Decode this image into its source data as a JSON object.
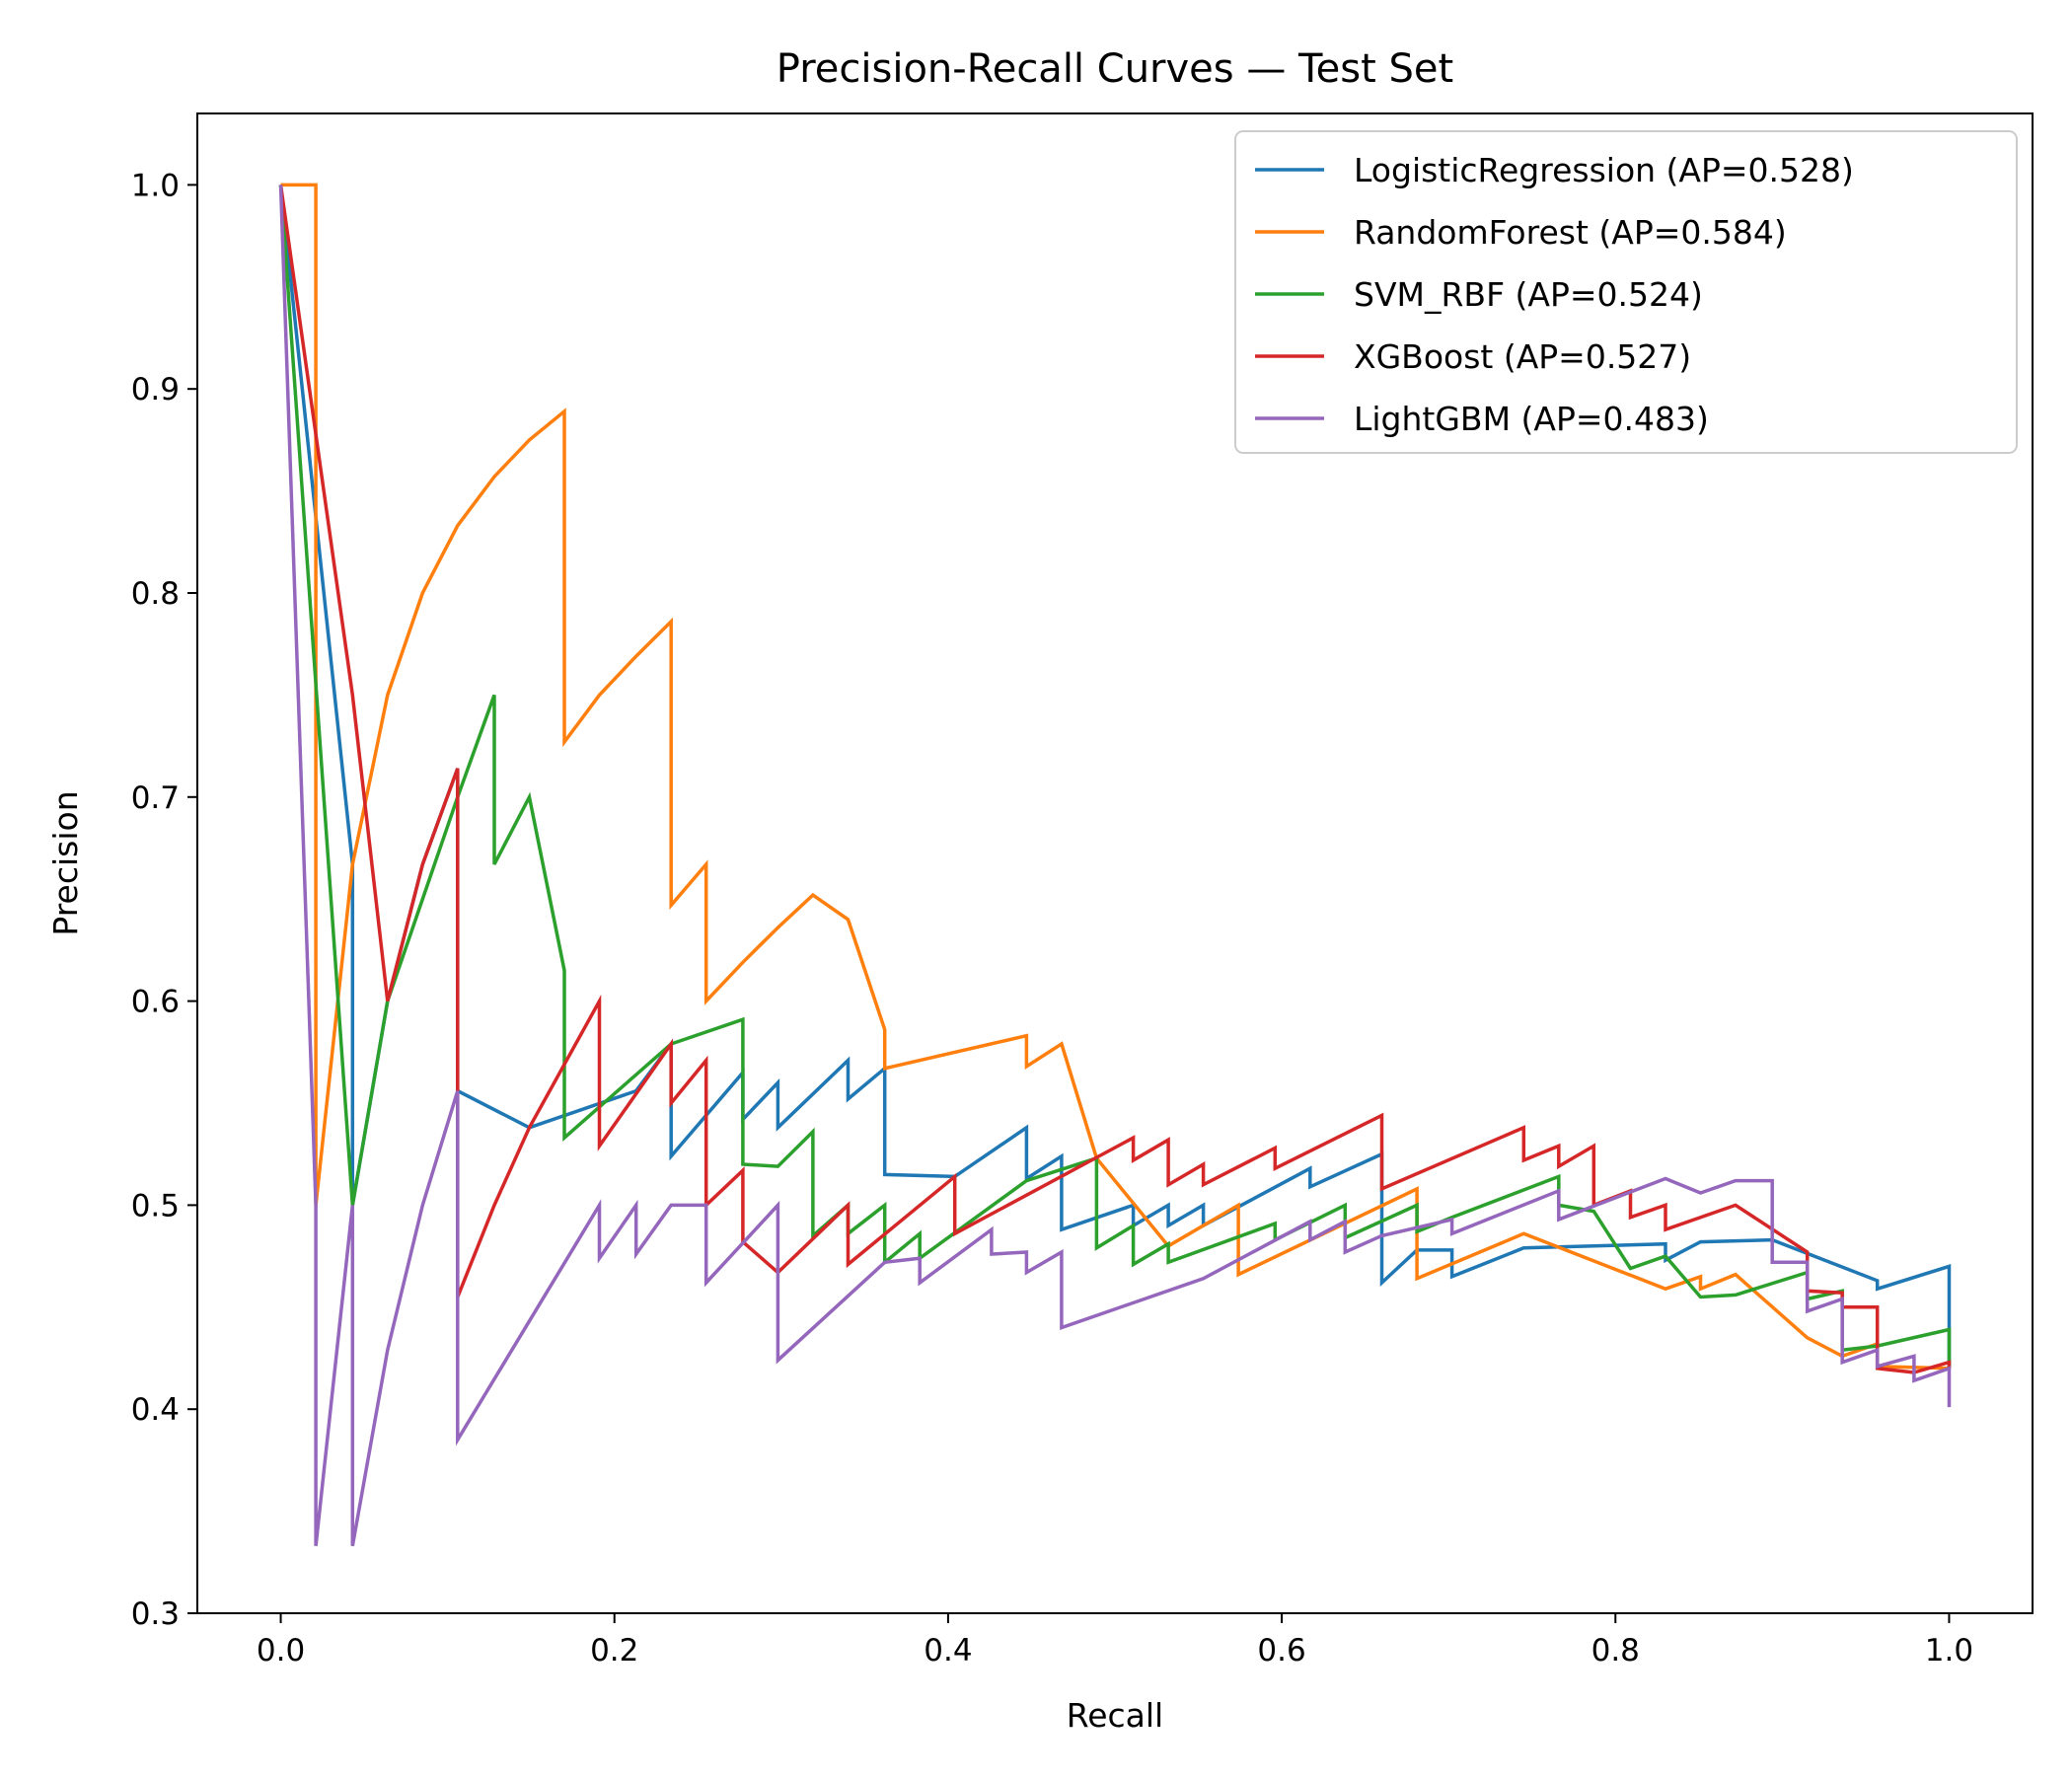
{
  "chart_data": {
    "type": "line",
    "title": "Precision-Recall Curves — Test Set",
    "xlabel": "Recall",
    "ylabel": "Precision",
    "xlim": [
      -0.05,
      1.05
    ],
    "ylim": [
      0.3,
      1.035
    ],
    "xticks": [
      0.0,
      0.2,
      0.4,
      0.6,
      0.8,
      1.0
    ],
    "xtick_labels": [
      "0.0",
      "0.2",
      "0.4",
      "0.6",
      "0.8",
      "1.0"
    ],
    "yticks": [
      0.3,
      0.4,
      0.5,
      0.6,
      0.7,
      0.8,
      0.9,
      1.0
    ],
    "ytick_labels": [
      "0.3",
      "0.4",
      "0.5",
      "0.6",
      "0.7",
      "0.8",
      "0.9",
      "1.0"
    ],
    "grid": false,
    "legend_position": "top-right",
    "series": [
      {
        "name": "LogisticRegression (AP=0.528)",
        "color": "#1f77b4",
        "points": [
          [
            0.0,
            1.0
          ],
          [
            0.043,
            0.667
          ],
          [
            0.043,
            0.5
          ],
          [
            0.064,
            0.6
          ],
          [
            0.085,
            0.667
          ],
          [
            0.106,
            0.714
          ],
          [
            0.106,
            0.556
          ],
          [
            0.149,
            0.538
          ],
          [
            0.213,
            0.556
          ],
          [
            0.234,
            0.579
          ],
          [
            0.234,
            0.524
          ],
          [
            0.277,
            0.565
          ],
          [
            0.277,
            0.542
          ],
          [
            0.298,
            0.56
          ],
          [
            0.298,
            0.538
          ],
          [
            0.34,
            0.571
          ],
          [
            0.34,
            0.552
          ],
          [
            0.362,
            0.567
          ],
          [
            0.362,
            0.515
          ],
          [
            0.404,
            0.514
          ],
          [
            0.447,
            0.538
          ],
          [
            0.447,
            0.513
          ],
          [
            0.468,
            0.524
          ],
          [
            0.468,
            0.488
          ],
          [
            0.511,
            0.5
          ],
          [
            0.511,
            0.49
          ],
          [
            0.532,
            0.5
          ],
          [
            0.532,
            0.49
          ],
          [
            0.553,
            0.5
          ],
          [
            0.553,
            0.49
          ],
          [
            0.617,
            0.518
          ],
          [
            0.617,
            0.509
          ],
          [
            0.66,
            0.525
          ],
          [
            0.66,
            0.462
          ],
          [
            0.681,
            0.478
          ],
          [
            0.702,
            0.478
          ],
          [
            0.702,
            0.465
          ],
          [
            0.745,
            0.479
          ],
          [
            0.83,
            0.481
          ],
          [
            0.83,
            0.473
          ],
          [
            0.851,
            0.482
          ],
          [
            0.894,
            0.483
          ],
          [
            0.957,
            0.463
          ],
          [
            0.957,
            0.459
          ],
          [
            1.0,
            0.47
          ],
          [
            1.0,
            0.42
          ]
        ]
      },
      {
        "name": "RandomForest (AP=0.584)",
        "color": "#ff7f0e",
        "points": [
          [
            0.0,
            1.0
          ],
          [
            0.021,
            1.0
          ],
          [
            0.021,
            0.5
          ],
          [
            0.043,
            0.667
          ],
          [
            0.064,
            0.75
          ],
          [
            0.085,
            0.8
          ],
          [
            0.106,
            0.833
          ],
          [
            0.128,
            0.857
          ],
          [
            0.149,
            0.875
          ],
          [
            0.17,
            0.889
          ],
          [
            0.17,
            0.727
          ],
          [
            0.191,
            0.75
          ],
          [
            0.213,
            0.769
          ],
          [
            0.234,
            0.786
          ],
          [
            0.234,
            0.647
          ],
          [
            0.255,
            0.667
          ],
          [
            0.255,
            0.6
          ],
          [
            0.277,
            0.619
          ],
          [
            0.298,
            0.636
          ],
          [
            0.319,
            0.652
          ],
          [
            0.34,
            0.64
          ],
          [
            0.362,
            0.586
          ],
          [
            0.362,
            0.567
          ],
          [
            0.447,
            0.583
          ],
          [
            0.447,
            0.568
          ],
          [
            0.468,
            0.579
          ],
          [
            0.489,
            0.523
          ],
          [
            0.532,
            0.48
          ],
          [
            0.574,
            0.5
          ],
          [
            0.574,
            0.466
          ],
          [
            0.681,
            0.508
          ],
          [
            0.681,
            0.464
          ],
          [
            0.745,
            0.486
          ],
          [
            0.83,
            0.459
          ],
          [
            0.851,
            0.465
          ],
          [
            0.851,
            0.459
          ],
          [
            0.872,
            0.466
          ],
          [
            0.915,
            0.435
          ],
          [
            0.936,
            0.426
          ],
          [
            0.957,
            0.432
          ],
          [
            0.957,
            0.421
          ],
          [
            1.0,
            0.42
          ]
        ]
      },
      {
        "name": "SVM_RBF (AP=0.524)",
        "color": "#2ca02c",
        "points": [
          [
            0.0,
            1.0
          ],
          [
            0.043,
            0.5
          ],
          [
            0.064,
            0.6
          ],
          [
            0.106,
            0.7
          ],
          [
            0.128,
            0.75
          ],
          [
            0.128,
            0.667
          ],
          [
            0.149,
            0.7
          ],
          [
            0.17,
            0.615
          ],
          [
            0.17,
            0.533
          ],
          [
            0.234,
            0.579
          ],
          [
            0.277,
            0.591
          ],
          [
            0.277,
            0.52
          ],
          [
            0.298,
            0.519
          ],
          [
            0.319,
            0.536
          ],
          [
            0.319,
            0.485
          ],
          [
            0.34,
            0.5
          ],
          [
            0.34,
            0.486
          ],
          [
            0.362,
            0.5
          ],
          [
            0.362,
            0.472
          ],
          [
            0.383,
            0.486
          ],
          [
            0.383,
            0.474
          ],
          [
            0.447,
            0.512
          ],
          [
            0.489,
            0.523
          ],
          [
            0.489,
            0.479
          ],
          [
            0.511,
            0.49
          ],
          [
            0.511,
            0.471
          ],
          [
            0.532,
            0.481
          ],
          [
            0.532,
            0.472
          ],
          [
            0.596,
            0.491
          ],
          [
            0.596,
            0.483
          ],
          [
            0.638,
            0.5
          ],
          [
            0.638,
            0.484
          ],
          [
            0.681,
            0.5
          ],
          [
            0.681,
            0.487
          ],
          [
            0.702,
            0.494
          ],
          [
            0.766,
            0.514
          ],
          [
            0.766,
            0.5
          ],
          [
            0.787,
            0.497
          ],
          [
            0.809,
            0.469
          ],
          [
            0.83,
            0.475
          ],
          [
            0.851,
            0.455
          ],
          [
            0.872,
            0.456
          ],
          [
            0.915,
            0.467
          ],
          [
            0.915,
            0.454
          ],
          [
            0.936,
            0.458
          ],
          [
            0.936,
            0.429
          ],
          [
            0.957,
            0.431
          ],
          [
            1.0,
            0.439
          ],
          [
            1.0,
            0.42
          ]
        ]
      },
      {
        "name": "XGBoost (AP=0.527)",
        "color": "#d62728",
        "points": [
          [
            0.0,
            1.0
          ],
          [
            0.043,
            0.75
          ],
          [
            0.064,
            0.6
          ],
          [
            0.085,
            0.667
          ],
          [
            0.106,
            0.714
          ],
          [
            0.106,
            0.455
          ],
          [
            0.128,
            0.5
          ],
          [
            0.149,
            0.538
          ],
          [
            0.191,
            0.6
          ],
          [
            0.191,
            0.529
          ],
          [
            0.234,
            0.579
          ],
          [
            0.234,
            0.55
          ],
          [
            0.255,
            0.571
          ],
          [
            0.255,
            0.5
          ],
          [
            0.277,
            0.517
          ],
          [
            0.277,
            0.482
          ],
          [
            0.298,
            0.467
          ],
          [
            0.298,
            0.467
          ],
          [
            0.34,
            0.5
          ],
          [
            0.34,
            0.471
          ],
          [
            0.404,
            0.514
          ],
          [
            0.404,
            0.486
          ],
          [
            0.511,
            0.533
          ],
          [
            0.511,
            0.522
          ],
          [
            0.532,
            0.532
          ],
          [
            0.532,
            0.51
          ],
          [
            0.553,
            0.52
          ],
          [
            0.553,
            0.51
          ],
          [
            0.596,
            0.528
          ],
          [
            0.596,
            0.518
          ],
          [
            0.66,
            0.544
          ],
          [
            0.66,
            0.508
          ],
          [
            0.745,
            0.538
          ],
          [
            0.745,
            0.522
          ],
          [
            0.766,
            0.529
          ],
          [
            0.766,
            0.519
          ],
          [
            0.787,
            0.529
          ],
          [
            0.787,
            0.5
          ],
          [
            0.809,
            0.507
          ],
          [
            0.809,
            0.494
          ],
          [
            0.83,
            0.5
          ],
          [
            0.83,
            0.488
          ],
          [
            0.872,
            0.5
          ],
          [
            0.915,
            0.477
          ],
          [
            0.915,
            0.458
          ],
          [
            0.936,
            0.457
          ],
          [
            0.936,
            0.45
          ],
          [
            0.957,
            0.45
          ],
          [
            0.957,
            0.42
          ],
          [
            0.979,
            0.418
          ],
          [
            1.0,
            0.423
          ],
          [
            1.0,
            0.42
          ]
        ]
      },
      {
        "name": "LightGBM (AP=0.483)",
        "color": "#9467bd",
        "points": [
          [
            0.0,
            1.0
          ],
          [
            0.021,
            0.5
          ],
          [
            0.021,
            0.333
          ],
          [
            0.043,
            0.5
          ],
          [
            0.043,
            0.333
          ],
          [
            0.064,
            0.429
          ],
          [
            0.085,
            0.5
          ],
          [
            0.106,
            0.556
          ],
          [
            0.106,
            0.385
          ],
          [
            0.191,
            0.5
          ],
          [
            0.191,
            0.474
          ],
          [
            0.213,
            0.5
          ],
          [
            0.213,
            0.476
          ],
          [
            0.234,
            0.5
          ],
          [
            0.255,
            0.5
          ],
          [
            0.255,
            0.462
          ],
          [
            0.298,
            0.5
          ],
          [
            0.298,
            0.424
          ],
          [
            0.362,
            0.472
          ],
          [
            0.383,
            0.474
          ],
          [
            0.383,
            0.462
          ],
          [
            0.426,
            0.488
          ],
          [
            0.426,
            0.476
          ],
          [
            0.447,
            0.477
          ],
          [
            0.447,
            0.467
          ],
          [
            0.468,
            0.477
          ],
          [
            0.468,
            0.44
          ],
          [
            0.553,
            0.464
          ],
          [
            0.617,
            0.492
          ],
          [
            0.617,
            0.483
          ],
          [
            0.638,
            0.492
          ],
          [
            0.638,
            0.477
          ],
          [
            0.66,
            0.485
          ],
          [
            0.702,
            0.493
          ],
          [
            0.702,
            0.486
          ],
          [
            0.766,
            0.507
          ],
          [
            0.766,
            0.493
          ],
          [
            0.83,
            0.513
          ],
          [
            0.851,
            0.506
          ],
          [
            0.872,
            0.512
          ],
          [
            0.894,
            0.512
          ],
          [
            0.894,
            0.472
          ],
          [
            0.915,
            0.472
          ],
          [
            0.915,
            0.448
          ],
          [
            0.936,
            0.454
          ],
          [
            0.936,
            0.423
          ],
          [
            0.957,
            0.429
          ],
          [
            0.957,
            0.421
          ],
          [
            0.979,
            0.426
          ],
          [
            0.979,
            0.414
          ],
          [
            1.0,
            0.42
          ],
          [
            1.0,
            0.401
          ]
        ]
      }
    ]
  }
}
